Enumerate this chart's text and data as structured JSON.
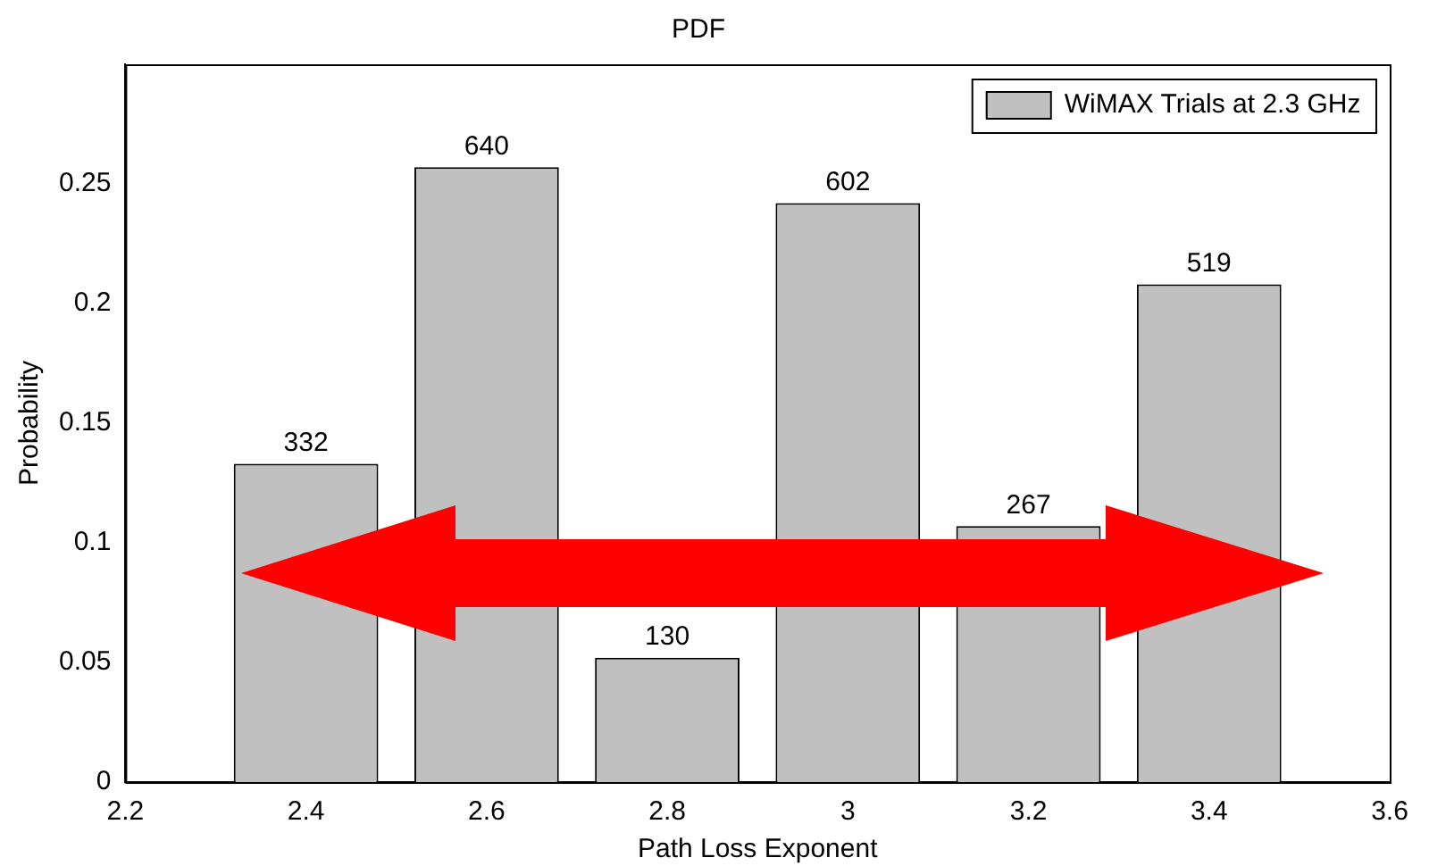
{
  "chart_data": {
    "type": "bar",
    "title": "PDF",
    "xlabel": "Path Loss Exponent",
    "ylabel": "Probability",
    "x": [
      2.4,
      2.6,
      2.8,
      3.0,
      3.2,
      3.4
    ],
    "series": [
      {
        "name": "WiMAX Trials at 2.3 GHz",
        "color": "#c0c0c0",
        "values": [
          0.133,
          0.257,
          0.052,
          0.242,
          0.107,
          0.208
        ]
      }
    ],
    "annotations": [
      {
        "text": "332",
        "x": 2.4,
        "y": 0.133
      },
      {
        "text": "640",
        "x": 2.6,
        "y": 0.257
      },
      {
        "text": "130",
        "x": 2.8,
        "y": 0.052
      },
      {
        "text": "602",
        "x": 3.0,
        "y": 0.242
      },
      {
        "text": "267",
        "x": 3.2,
        "y": 0.107
      },
      {
        "text": "519",
        "x": 3.4,
        "y": 0.208
      }
    ],
    "xlim": [
      2.2,
      3.6
    ],
    "xticks": [
      2.2,
      2.4,
      2.6,
      2.8,
      3,
      3.2,
      3.4,
      3.6
    ],
    "ylim": [
      0,
      0.3
    ],
    "yticks": [
      0,
      0.05,
      0.1,
      0.15,
      0.2,
      0.25
    ],
    "grid": false,
    "legend": "top right"
  }
}
